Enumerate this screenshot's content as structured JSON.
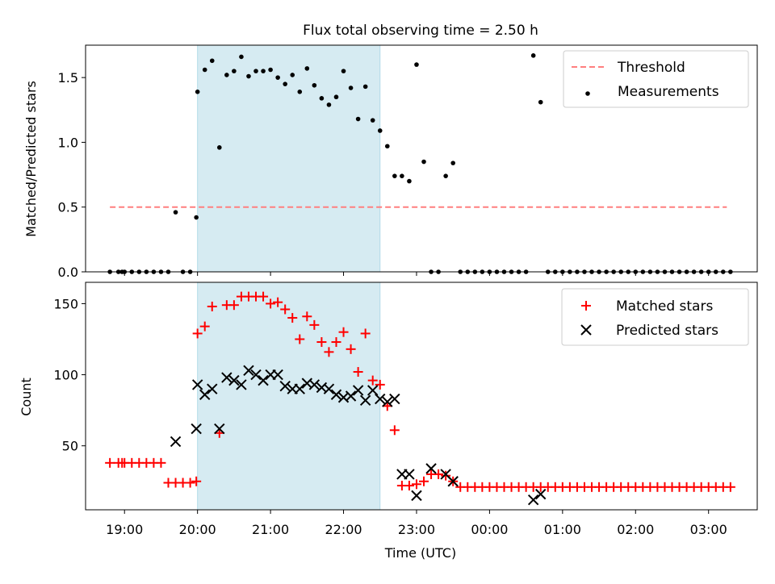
{
  "chart_data": [
    {
      "type": "scatter",
      "title": "Flux total observing time = 2.50 h",
      "xlabel": "",
      "ylabel": "Matched/Predicted stars",
      "ylim": [
        0,
        1.75
      ],
      "yticks": [
        "0.0",
        "0.5",
        "1.0",
        "1.5"
      ],
      "xlim": [
        "18:28",
        "03:40"
      ],
      "shaded_interval": [
        "20:00",
        "22:30"
      ],
      "grid": false,
      "legend_position": "top-right",
      "threshold": {
        "name": "Threshold",
        "value": 0.5,
        "x_range": [
          "18:48",
          "03:15"
        ],
        "color": "#ff7f7f"
      },
      "series": [
        {
          "name": "Measurements",
          "color": "#000000",
          "points": [
            [
              "18:48",
              0
            ],
            [
              "18:55",
              0
            ],
            [
              "18:58",
              0
            ],
            [
              "19:00",
              0
            ],
            [
              "19:06",
              0
            ],
            [
              "19:12",
              0
            ],
            [
              "19:18",
              0
            ],
            [
              "19:24",
              0
            ],
            [
              "19:30",
              0
            ],
            [
              "19:36",
              0
            ],
            [
              "19:42",
              0.46
            ],
            [
              "19:48",
              0
            ],
            [
              "19:54",
              0
            ],
            [
              "19:59",
              0.42
            ],
            [
              "20:00",
              1.39
            ],
            [
              "20:06",
              1.56
            ],
            [
              "20:12",
              1.63
            ],
            [
              "20:18",
              0.96
            ],
            [
              "20:24",
              1.52
            ],
            [
              "20:30",
              1.55
            ],
            [
              "20:36",
              1.66
            ],
            [
              "20:42",
              1.51
            ],
            [
              "20:48",
              1.55
            ],
            [
              "20:54",
              1.55
            ],
            [
              "21:00",
              1.56
            ],
            [
              "21:06",
              1.5
            ],
            [
              "21:12",
              1.45
            ],
            [
              "21:18",
              1.52
            ],
            [
              "21:24",
              1.39
            ],
            [
              "21:30",
              1.57
            ],
            [
              "21:36",
              1.44
            ],
            [
              "21:42",
              1.34
            ],
            [
              "21:48",
              1.29
            ],
            [
              "21:54",
              1.35
            ],
            [
              "22:00",
              1.55
            ],
            [
              "22:06",
              1.42
            ],
            [
              "22:12",
              1.18
            ],
            [
              "22:18",
              1.43
            ],
            [
              "22:24",
              1.17
            ],
            [
              "22:30",
              1.09
            ],
            [
              "22:36",
              0.97
            ],
            [
              "22:42",
              0.74
            ],
            [
              "22:48",
              0.74
            ],
            [
              "22:54",
              0.7
            ],
            [
              "23:00",
              1.6
            ],
            [
              "23:06",
              0.85
            ],
            [
              "23:12",
              0
            ],
            [
              "23:18",
              0
            ],
            [
              "23:24",
              0.74
            ],
            [
              "23:30",
              0.84
            ],
            [
              "23:36",
              0
            ],
            [
              "23:42",
              0
            ],
            [
              "23:48",
              0
            ],
            [
              "23:54",
              0
            ],
            [
              "00:00",
              0
            ],
            [
              "00:06",
              0
            ],
            [
              "00:12",
              0
            ],
            [
              "00:18",
              0
            ],
            [
              "00:24",
              0
            ],
            [
              "00:30",
              0
            ],
            [
              "00:36",
              1.67
            ],
            [
              "00:42",
              1.31
            ],
            [
              "00:48",
              0
            ],
            [
              "00:54",
              0
            ],
            [
              "01:00",
              0
            ],
            [
              "01:06",
              0
            ],
            [
              "01:12",
              0
            ],
            [
              "01:18",
              0
            ],
            [
              "01:24",
              0
            ],
            [
              "01:30",
              0
            ],
            [
              "01:36",
              0
            ],
            [
              "01:42",
              0
            ],
            [
              "01:48",
              0
            ],
            [
              "01:54",
              0
            ],
            [
              "02:00",
              0
            ],
            [
              "02:06",
              0
            ],
            [
              "02:12",
              0
            ],
            [
              "02:18",
              0
            ],
            [
              "02:24",
              0
            ],
            [
              "02:30",
              0
            ],
            [
              "02:36",
              0
            ],
            [
              "02:42",
              0
            ],
            [
              "02:48",
              0
            ],
            [
              "02:54",
              0
            ],
            [
              "03:00",
              0
            ],
            [
              "03:06",
              0
            ],
            [
              "03:12",
              0
            ],
            [
              "03:18",
              0
            ]
          ]
        }
      ]
    },
    {
      "type": "scatter",
      "title": "",
      "xlabel": "Time (UTC)",
      "ylabel": "Count",
      "ylim": [
        5,
        165
      ],
      "yticks": [
        "50",
        "100",
        "150"
      ],
      "xticks": [
        "19:00",
        "20:00",
        "21:00",
        "22:00",
        "23:00",
        "00:00",
        "01:00",
        "02:00",
        "03:00"
      ],
      "shaded_interval": [
        "20:00",
        "22:30"
      ],
      "grid": false,
      "legend_position": "top-right",
      "series": [
        {
          "name": "Matched stars",
          "marker": "plus",
          "color": "#ff0000",
          "points": [
            [
              "18:48",
              38
            ],
            [
              "18:55",
              38
            ],
            [
              "18:58",
              38
            ],
            [
              "19:00",
              38
            ],
            [
              "19:06",
              38
            ],
            [
              "19:12",
              38
            ],
            [
              "19:18",
              38
            ],
            [
              "19:24",
              38
            ],
            [
              "19:30",
              38
            ],
            [
              "19:36",
              24
            ],
            [
              "19:42",
              24
            ],
            [
              "19:48",
              24
            ],
            [
              "19:54",
              24
            ],
            [
              "19:59",
              25
            ],
            [
              "20:00",
              129
            ],
            [
              "20:06",
              134
            ],
            [
              "20:12",
              148
            ],
            [
              "20:18",
              59
            ],
            [
              "20:24",
              149
            ],
            [
              "20:30",
              149
            ],
            [
              "20:36",
              155
            ],
            [
              "20:42",
              155
            ],
            [
              "20:48",
              155
            ],
            [
              "20:54",
              155
            ],
            [
              "21:00",
              150
            ],
            [
              "21:06",
              151
            ],
            [
              "21:12",
              146
            ],
            [
              "21:18",
              140
            ],
            [
              "21:24",
              125
            ],
            [
              "21:30",
              141
            ],
            [
              "21:36",
              135
            ],
            [
              "21:42",
              123
            ],
            [
              "21:48",
              116
            ],
            [
              "21:54",
              123
            ],
            [
              "22:00",
              130
            ],
            [
              "22:06",
              118
            ],
            [
              "22:12",
              102
            ],
            [
              "22:18",
              129
            ],
            [
              "22:24",
              96
            ],
            [
              "22:30",
              93
            ],
            [
              "22:36",
              78
            ],
            [
              "22:42",
              61
            ],
            [
              "22:48",
              22
            ],
            [
              "22:54",
              22
            ],
            [
              "23:00",
              23
            ],
            [
              "23:06",
              25
            ],
            [
              "23:12",
              30
            ],
            [
              "23:18",
              30
            ],
            [
              "23:24",
              29
            ],
            [
              "23:30",
              25
            ],
            [
              "23:36",
              21
            ],
            [
              "23:42",
              21
            ],
            [
              "23:48",
              21
            ],
            [
              "23:54",
              21
            ],
            [
              "00:00",
              21
            ],
            [
              "00:06",
              21
            ],
            [
              "00:12",
              21
            ],
            [
              "00:18",
              21
            ],
            [
              "00:24",
              21
            ],
            [
              "00:30",
              21
            ],
            [
              "00:36",
              21
            ],
            [
              "00:42",
              21
            ],
            [
              "00:48",
              21
            ],
            [
              "00:54",
              21
            ],
            [
              "01:00",
              21
            ],
            [
              "01:06",
              21
            ],
            [
              "01:12",
              21
            ],
            [
              "01:18",
              21
            ],
            [
              "01:24",
              21
            ],
            [
              "01:30",
              21
            ],
            [
              "01:36",
              21
            ],
            [
              "01:42",
              21
            ],
            [
              "01:48",
              21
            ],
            [
              "01:54",
              21
            ],
            [
              "02:00",
              21
            ],
            [
              "02:06",
              21
            ],
            [
              "02:12",
              21
            ],
            [
              "02:18",
              21
            ],
            [
              "02:24",
              21
            ],
            [
              "02:30",
              21
            ],
            [
              "02:36",
              21
            ],
            [
              "02:42",
              21
            ],
            [
              "02:48",
              21
            ],
            [
              "02:54",
              21
            ],
            [
              "03:00",
              21
            ],
            [
              "03:06",
              21
            ],
            [
              "03:12",
              21
            ],
            [
              "03:18",
              21
            ]
          ]
        },
        {
          "name": "Predicted stars",
          "marker": "x",
          "color": "#000000",
          "points": [
            [
              "19:42",
              53
            ],
            [
              "19:59",
              62
            ],
            [
              "20:00",
              93
            ],
            [
              "20:06",
              86
            ],
            [
              "20:12",
              90
            ],
            [
              "20:18",
              62
            ],
            [
              "20:24",
              98
            ],
            [
              "20:30",
              96
            ],
            [
              "20:36",
              93
            ],
            [
              "20:42",
              103
            ],
            [
              "20:48",
              100
            ],
            [
              "20:54",
              96
            ],
            [
              "21:00",
              100
            ],
            [
              "21:06",
              100
            ],
            [
              "21:12",
              92
            ],
            [
              "21:18",
              90
            ],
            [
              "21:24",
              90
            ],
            [
              "21:30",
              94
            ],
            [
              "21:36",
              93
            ],
            [
              "21:42",
              91
            ],
            [
              "21:48",
              90
            ],
            [
              "21:54",
              86
            ],
            [
              "22:00",
              84
            ],
            [
              "22:06",
              85
            ],
            [
              "22:12",
              89
            ],
            [
              "22:18",
              82
            ],
            [
              "22:24",
              89
            ],
            [
              "22:30",
              83
            ],
            [
              "22:36",
              81
            ],
            [
              "22:42",
              83
            ],
            [
              "22:48",
              30
            ],
            [
              "22:54",
              30
            ],
            [
              "23:00",
              15
            ],
            [
              "23:12",
              34
            ],
            [
              "23:24",
              30
            ],
            [
              "23:30",
              25
            ],
            [
              "00:36",
              12
            ],
            [
              "00:42",
              16
            ]
          ]
        }
      ]
    }
  ]
}
